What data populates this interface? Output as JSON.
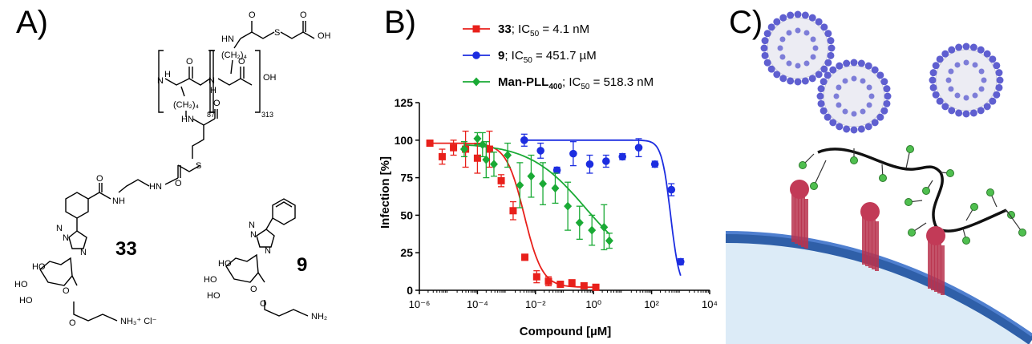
{
  "panels": {
    "a": {
      "label": "A)"
    },
    "b": {
      "label": "B)"
    },
    "c": {
      "label": "C)"
    }
  },
  "molecules": {
    "polymer": {
      "nh": "N",
      "h": "H",
      "nh_side": "NH",
      "nh_top": "HN",
      "ch2_left": "(CH₂)₄",
      "ch2_right": "(CH₂)₄",
      "sub_87": "87",
      "sub_313": "313",
      "oh": "OH",
      "o": "O",
      "s": "S",
      "oh_top": "OH",
      "h_right": "H"
    },
    "compound33": {
      "number": "33",
      "nh1": "NH",
      "nh2": "HN",
      "n_labels": [
        "N",
        "N",
        "N"
      ],
      "ho": "HO",
      "ho2": "HO",
      "ho3": "HO",
      "o": "O",
      "amine": "NH₃⁺ Cl⁻"
    },
    "compound9": {
      "number": "9",
      "n_labels": [
        "N",
        "N",
        "N"
      ],
      "ho": "HO",
      "ho2": "HO",
      "ho3": "HO",
      "o": "O",
      "amine": "NH₂"
    }
  },
  "chart_data": {
    "type": "scatter",
    "xlabel": "Compound [µM]",
    "ylabel": "Infection [%]",
    "xscale": "log",
    "xlim": [
      1e-06,
      10000
    ],
    "ylim": [
      0,
      125
    ],
    "xticks": [
      "10⁻⁶",
      "10⁻⁴",
      "10⁻²",
      "10⁰",
      "10²",
      "10⁴"
    ],
    "xtick_values": [
      1e-06,
      0.0001,
      0.01,
      1,
      100,
      10000
    ],
    "yticks": [
      0,
      25,
      50,
      75,
      100,
      125
    ],
    "legend_position": "top",
    "series": [
      {
        "name": "33; IC50 = 4.1 nM",
        "legend_bold": "33",
        "legend_rest": "; IC",
        "legend_sub": "50",
        "legend_tail": " = 4.1 nM",
        "color": "#e8201b",
        "marker": "square",
        "ic50_uM": 0.0041,
        "points": [
          {
            "x": 2.3e-06,
            "y": 98,
            "err": 2
          },
          {
            "x": 6.1e-06,
            "y": 89,
            "err": 5
          },
          {
            "x": 1.5e-05,
            "y": 95,
            "err": 5
          },
          {
            "x": 3.9e-05,
            "y": 94,
            "err": 12
          },
          {
            "x": 0.0001,
            "y": 88,
            "err": 10
          },
          {
            "x": 0.00026,
            "y": 94,
            "err": 12
          },
          {
            "x": 0.00066,
            "y": 73,
            "err": 4
          },
          {
            "x": 0.0017,
            "y": 53,
            "err": 6
          },
          {
            "x": 0.0043,
            "y": 22,
            "err": 2
          },
          {
            "x": 0.011,
            "y": 9,
            "err": 4
          },
          {
            "x": 0.028,
            "y": 6,
            "err": 3
          },
          {
            "x": 0.072,
            "y": 4,
            "err": 1
          },
          {
            "x": 0.18,
            "y": 5,
            "err": 1
          },
          {
            "x": 0.47,
            "y": 3,
            "err": 1
          },
          {
            "x": 1.2,
            "y": 2,
            "err": 1
          }
        ]
      },
      {
        "name": "9; IC50 = 451.7 µM",
        "legend_bold": "9",
        "legend_rest": "; IC",
        "legend_sub": "50",
        "legend_tail": " = 451.7 µM",
        "color": "#1c2de0",
        "marker": "circle",
        "ic50_uM": 451.7,
        "points": [
          {
            "x": 0.0041,
            "y": 100,
            "err": 4
          },
          {
            "x": 0.015,
            "y": 93,
            "err": 5
          },
          {
            "x": 0.055,
            "y": 80,
            "err": 2
          },
          {
            "x": 0.2,
            "y": 91,
            "err": 8
          },
          {
            "x": 0.74,
            "y": 84,
            "err": 6
          },
          {
            "x": 2.7,
            "y": 86,
            "err": 4
          },
          {
            "x": 9.9,
            "y": 89,
            "err": 2
          },
          {
            "x": 36,
            "y": 95,
            "err": 6
          },
          {
            "x": 130,
            "y": 84,
            "err": 2
          },
          {
            "x": 480,
            "y": 67,
            "err": 4
          },
          {
            "x": 1000,
            "y": 19,
            "err": 2
          }
        ]
      },
      {
        "name": "Man-PLL400; IC50 = 518.3 nM",
        "legend_bold": "Man-PLL",
        "legend_bold_sub": "400",
        "legend_rest": "; IC",
        "legend_sub": "50",
        "legend_tail": " = 518.3 nM",
        "color": "#1aaa35",
        "marker": "diamond",
        "ic50_uM": 0.5183,
        "points": [
          {
            "x": 3.5e-05,
            "y": 94,
            "err": 5
          },
          {
            "x": 0.0001,
            "y": 101,
            "err": 4
          },
          {
            "x": 0.00015,
            "y": 97,
            "err": 8
          },
          {
            "x": 0.0002,
            "y": 87,
            "err": 12
          },
          {
            "x": 0.00037,
            "y": 84,
            "err": 8
          },
          {
            "x": 0.0011,
            "y": 90,
            "err": 8
          },
          {
            "x": 0.0029,
            "y": 70,
            "err": 15
          },
          {
            "x": 0.0071,
            "y": 76,
            "err": 14
          },
          {
            "x": 0.018,
            "y": 71,
            "err": 14
          },
          {
            "x": 0.048,
            "y": 68,
            "err": 10
          },
          {
            "x": 0.13,
            "y": 56,
            "err": 16
          },
          {
            "x": 0.33,
            "y": 45,
            "err": 11
          },
          {
            "x": 0.88,
            "y": 40,
            "err": 10
          },
          {
            "x": 2.3,
            "y": 42,
            "err": 15
          },
          {
            "x": 3.5,
            "y": 33,
            "err": 5
          }
        ]
      }
    ]
  }
}
